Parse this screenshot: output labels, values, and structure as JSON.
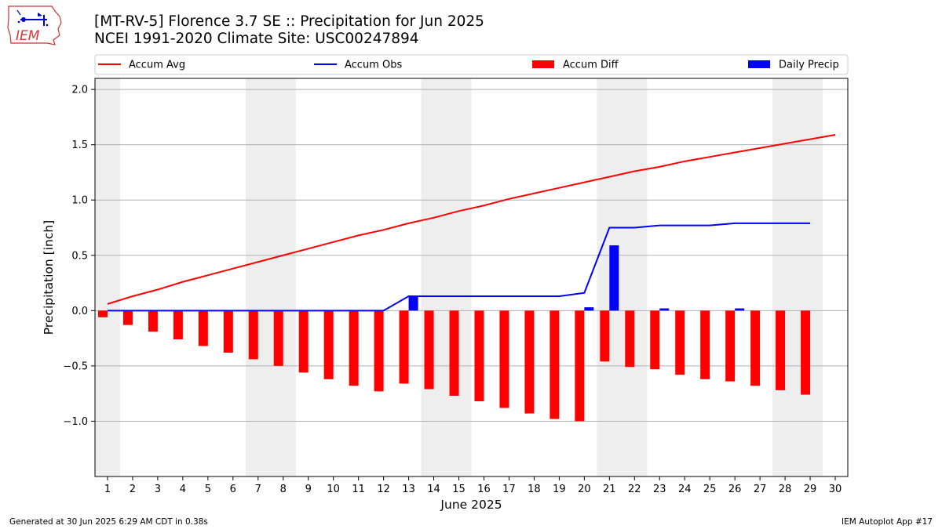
{
  "header": {
    "title_line1": "[MT-RV-5] Florence 3.7 SE :: Precipitation for Jun 2025",
    "title_line2": "NCEI 1991-2020 Climate Site: USC00247894"
  },
  "logo": {
    "text": "IEM"
  },
  "footer": {
    "generated": "Generated at 30 Jun 2025 6:29 AM CDT in 0.38s",
    "app": "IEM Autoplot App #17"
  },
  "colors": {
    "avg": "#ff0000",
    "obs": "#0000ff",
    "diff": "#ff0000",
    "daily": "#0000ff",
    "weekend_shade": "#eeeeee",
    "grid": "#b0b0b0"
  },
  "chart_data": {
    "type": "bar",
    "xlabel": "June 2025",
    "ylabel": "Precipitation [inch]",
    "ylim": [
      -1.5,
      2.1
    ],
    "xlim": [
      0.5,
      30.5
    ],
    "yticks": [
      -1.0,
      -0.5,
      0.0,
      0.5,
      1.0,
      1.5,
      2.0
    ],
    "ytick_labels": [
      "−1.0",
      "−0.5",
      "0.0",
      "0.5",
      "1.0",
      "1.5",
      "2.0"
    ],
    "xticks": [
      1,
      2,
      3,
      4,
      5,
      6,
      7,
      8,
      9,
      10,
      11,
      12,
      13,
      14,
      15,
      16,
      17,
      18,
      19,
      20,
      21,
      22,
      23,
      24,
      25,
      26,
      27,
      28,
      29,
      30
    ],
    "grid": "horizontal",
    "legend_placement": "top, above plot",
    "weekend_shading": [
      [
        0.5,
        1.5
      ],
      [
        6.5,
        8.5
      ],
      [
        13.5,
        15.5
      ],
      [
        20.5,
        22.5
      ],
      [
        27.5,
        29.5
      ]
    ],
    "legend": [
      "Accum Avg",
      "Accum Obs",
      "Accum Diff",
      "Daily Precip"
    ],
    "series": [
      {
        "name": "Accum Avg",
        "kind": "line",
        "x": [
          1,
          2,
          3,
          4,
          5,
          6,
          7,
          8,
          9,
          10,
          11,
          12,
          13,
          14,
          15,
          16,
          17,
          18,
          19,
          20,
          21,
          22,
          23,
          24,
          25,
          26,
          27,
          28,
          29,
          30
        ],
        "values": [
          0.06,
          0.13,
          0.19,
          0.26,
          0.32,
          0.38,
          0.44,
          0.5,
          0.56,
          0.62,
          0.68,
          0.73,
          0.79,
          0.84,
          0.9,
          0.95,
          1.01,
          1.06,
          1.11,
          1.16,
          1.21,
          1.26,
          1.3,
          1.35,
          1.39,
          1.43,
          1.47,
          1.51,
          1.55,
          1.59
        ]
      },
      {
        "name": "Accum Obs",
        "kind": "line",
        "x": [
          1,
          2,
          3,
          4,
          5,
          6,
          7,
          8,
          9,
          10,
          11,
          12,
          13,
          14,
          15,
          16,
          17,
          18,
          19,
          20,
          21,
          22,
          23,
          24,
          25,
          26,
          27,
          28,
          29
        ],
        "values": [
          0.0,
          0.0,
          0.0,
          0.0,
          0.0,
          0.0,
          0.0,
          0.0,
          0.0,
          0.0,
          0.0,
          0.0,
          0.13,
          0.13,
          0.13,
          0.13,
          0.13,
          0.13,
          0.13,
          0.16,
          0.75,
          0.75,
          0.77,
          0.77,
          0.77,
          0.79,
          0.79,
          0.79,
          0.79
        ]
      },
      {
        "name": "Accum Diff",
        "kind": "bar",
        "x": [
          1,
          2,
          3,
          4,
          5,
          6,
          7,
          8,
          9,
          10,
          11,
          12,
          13,
          14,
          15,
          16,
          17,
          18,
          19,
          20,
          21,
          22,
          23,
          24,
          25,
          26,
          27,
          28,
          29
        ],
        "values": [
          -0.06,
          -0.13,
          -0.19,
          -0.26,
          -0.32,
          -0.38,
          -0.44,
          -0.5,
          -0.56,
          -0.62,
          -0.68,
          -0.73,
          -0.66,
          -0.71,
          -0.77,
          -0.82,
          -0.88,
          -0.93,
          -0.98,
          -1.0,
          -0.46,
          -0.51,
          -0.53,
          -0.58,
          -0.62,
          -0.64,
          -0.68,
          -0.72,
          -0.76
        ]
      },
      {
        "name": "Daily Precip",
        "kind": "bar",
        "x": [
          13,
          20,
          21,
          23,
          26
        ],
        "values": [
          0.13,
          0.03,
          0.59,
          0.02,
          0.02
        ]
      }
    ]
  }
}
